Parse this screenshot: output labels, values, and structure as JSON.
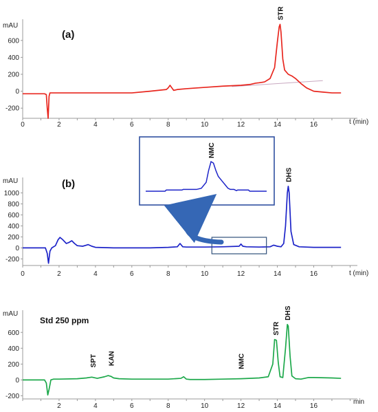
{
  "chart_data": [
    {
      "type": "line",
      "panel_label": "(a)",
      "ylabel": "mAU",
      "xlabel": "t (min)",
      "xlim": [
        0,
        18.4
      ],
      "ylim": [
        -320,
        850
      ],
      "x_ticks": [
        0,
        2,
        4,
        6,
        8,
        10,
        12,
        14,
        16
      ],
      "y_ticks": [
        -200,
        0,
        200,
        400,
        600
      ],
      "series": [
        {
          "color": "#e8261e",
          "x": [
            0,
            1.2,
            1.3,
            1.35,
            1.4,
            1.45,
            1.5,
            1.6,
            2,
            4,
            6,
            7,
            7.9,
            8.0,
            8.1,
            8.2,
            8.3,
            8.5,
            9,
            10,
            11,
            12,
            12.5,
            12.8,
            13,
            13.3,
            13.6,
            13.85,
            14.0,
            14.1,
            14.15,
            14.2,
            14.3,
            14.4,
            14.6,
            14.8,
            15.0,
            15.3,
            15.6,
            16.0,
            16.5,
            17,
            17.5
          ],
          "y": [
            -30,
            -30,
            -40,
            -200,
            -320,
            -60,
            -20,
            -20,
            -20,
            -20,
            -20,
            0,
            20,
            40,
            70,
            40,
            10,
            20,
            30,
            45,
            60,
            70,
            80,
            95,
            100,
            110,
            150,
            280,
            580,
            760,
            790,
            700,
            380,
            250,
            200,
            180,
            150,
            90,
            40,
            0,
            -10,
            -20,
            -20
          ]
        }
      ],
      "baseline": {
        "x": [
          11.5,
          16.5
        ],
        "y": [
          55,
          125
        ],
        "color": "#c8a8c0"
      },
      "peaks": [
        {
          "label": "STR",
          "x": 14.15,
          "y": 790
        }
      ]
    },
    {
      "type": "line",
      "panel_label": "(b)",
      "ylabel": "mAU",
      "xlabel": "t (min)",
      "xlim": [
        0,
        18.4
      ],
      "ylim": [
        -320,
        1280
      ],
      "x_ticks": [
        0,
        2,
        4,
        6,
        8,
        10,
        12,
        14,
        16
      ],
      "y_ticks": [
        -200,
        0,
        200,
        400,
        600,
        800,
        1000
      ],
      "series": [
        {
          "color": "#1c23c8",
          "x": [
            0,
            1.25,
            1.35,
            1.42,
            1.5,
            1.6,
            1.8,
            1.95,
            2.05,
            2.2,
            2.4,
            2.55,
            2.7,
            2.85,
            3.0,
            3.3,
            3.5,
            3.6,
            3.8,
            4.0,
            5,
            6,
            7,
            8,
            8.5,
            8.65,
            8.8,
            9.0,
            10,
            11,
            11.9,
            12.0,
            12.1,
            12.3,
            13,
            13.6,
            13.8,
            14.0,
            14.2,
            14.35,
            14.45,
            14.55,
            14.6,
            14.65,
            14.75,
            14.9,
            15.2,
            16,
            17,
            17.5
          ],
          "y": [
            0,
            0,
            -100,
            -280,
            -60,
            0,
            40,
            150,
            190,
            150,
            80,
            100,
            130,
            80,
            40,
            30,
            50,
            60,
            30,
            10,
            0,
            0,
            0,
            10,
            20,
            80,
            20,
            15,
            15,
            20,
            30,
            70,
            30,
            20,
            15,
            20,
            50,
            30,
            20,
            80,
            400,
            1000,
            1120,
            1000,
            300,
            60,
            20,
            10,
            10,
            10
          ]
        }
      ],
      "peaks": [
        {
          "label": "DHS",
          "x": 14.6,
          "y": 1120
        }
      ],
      "inset": {
        "label": "NMC",
        "x": [
          0,
          0.16,
          0.17,
          0.3,
          0.31,
          0.42,
          0.46,
          0.5,
          0.52,
          0.54,
          0.56,
          0.58,
          0.6,
          0.63,
          0.66,
          0.68,
          0.7,
          0.73,
          0.75,
          0.76,
          0.85,
          0.86,
          1
        ],
        "y": [
          0,
          0,
          0.04,
          0.04,
          0.06,
          0.06,
          0.1,
          0.3,
          0.7,
          1.0,
          0.95,
          0.7,
          0.5,
          0.35,
          0.2,
          0.1,
          0.06,
          0.06,
          0.02,
          0.04,
          0.04,
          0.0,
          0.0
        ]
      },
      "zoom_region_x": [
        10.4,
        13.4
      ]
    },
    {
      "type": "line",
      "panel_label": "Std 250 ppm",
      "ylabel": "mAU",
      "xlabel": "min",
      "xlim": [
        0,
        18.4
      ],
      "ylim": [
        -240,
        880
      ],
      "x_ticks": [
        2,
        4,
        6,
        8,
        10,
        12,
        14,
        16
      ],
      "y_ticks": [
        -200,
        0,
        200,
        400,
        600
      ],
      "series": [
        {
          "color": "#1ca84a",
          "x": [
            0,
            1.2,
            1.3,
            1.38,
            1.45,
            1.55,
            1.7,
            2,
            3,
            3.5,
            3.8,
            4.1,
            4.5,
            4.7,
            4.85,
            5.0,
            5.3,
            6,
            7,
            8,
            8.7,
            8.85,
            9.0,
            9.2,
            10,
            11,
            12,
            13,
            13.5,
            13.75,
            13.85,
            13.95,
            14.05,
            14.15,
            14.3,
            14.45,
            14.55,
            14.6,
            14.7,
            14.8,
            15.0,
            15.3,
            15.5,
            15.7,
            16,
            17,
            17.5
          ],
          "y": [
            0,
            0,
            -40,
            -190,
            -120,
            0,
            10,
            10,
            15,
            25,
            35,
            20,
            40,
            55,
            45,
            25,
            15,
            10,
            10,
            10,
            20,
            40,
            10,
            5,
            5,
            10,
            15,
            25,
            40,
            200,
            510,
            500,
            220,
            40,
            30,
            400,
            700,
            680,
            300,
            50,
            15,
            10,
            20,
            30,
            30,
            25,
            20
          ]
        }
      ],
      "peaks": [
        {
          "label": "SPT",
          "x": 3.85,
          "y": 35
        },
        {
          "label": "KAN",
          "x": 4.85,
          "y": 55
        },
        {
          "label": "NMC",
          "x": 12.0,
          "y": 15
        },
        {
          "label": "STR",
          "x": 13.9,
          "y": 510
        },
        {
          "label": "DHS",
          "x": 14.55,
          "y": 700
        }
      ]
    }
  ]
}
